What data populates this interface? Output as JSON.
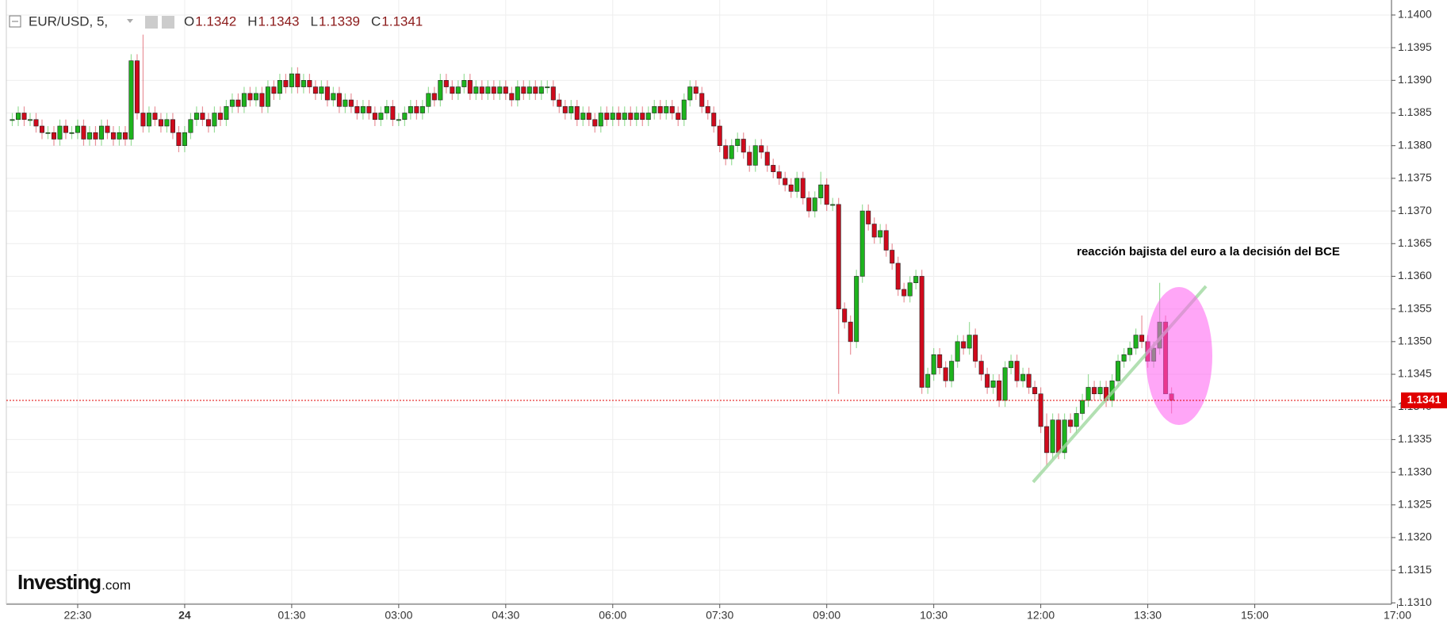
{
  "chart_data": {
    "type": "candlestick",
    "symbol": "EUR/USD, 5,",
    "ohlc_legend": [
      {
        "label": "O",
        "value": 1.1342
      },
      {
        "label": "H",
        "value": 1.1343
      },
      {
        "label": "L",
        "value": 1.1339
      },
      {
        "label": "C",
        "value": 1.1341
      }
    ],
    "annotation": "reacción bajista del euro  a la decisión del BCE",
    "logo": {
      "brand": "Investing",
      "suffix": ".com"
    },
    "last_price": {
      "value": 1.1341,
      "label": "1.1341",
      "color": "#e00000"
    },
    "up_color": "#1db31d",
    "down_color": "#cf0a1c",
    "grid": true,
    "xlim": [
      -150,
      1015
    ],
    "xticks": [
      {
        "value": -90,
        "label": "22:30"
      },
      {
        "value": 0,
        "label": "24"
      },
      {
        "value": 90,
        "label": "01:30"
      },
      {
        "value": 180,
        "label": "03:00"
      },
      {
        "value": 270,
        "label": "04:30"
      },
      {
        "value": 360,
        "label": "06:00"
      },
      {
        "value": 450,
        "label": "07:30"
      },
      {
        "value": 540,
        "label": "09:00"
      },
      {
        "value": 630,
        "label": "10:30"
      },
      {
        "value": 720,
        "label": "12:00"
      },
      {
        "value": 810,
        "label": "13:30"
      },
      {
        "value": 900,
        "label": "15:00"
      },
      {
        "value": 1020,
        "label": "17:00"
      }
    ],
    "ylim": [
      1.13098,
      1.14023
    ],
    "yticks": [
      {
        "value": 1.131,
        "label": "1.1310"
      },
      1.1315,
      {
        "value": 1.132,
        "label": "1.1320"
      },
      1.1325,
      {
        "value": 1.133,
        "label": "1.1330"
      },
      1.1335,
      {
        "value": 1.134,
        "label": "1.1340"
      },
      1.1345,
      {
        "value": 1.135,
        "label": "1.1350"
      },
      1.1355,
      {
        "value": 1.136,
        "label": "1.1360"
      },
      1.1365,
      {
        "value": 1.137,
        "label": "1.1370"
      },
      1.1375,
      {
        "value": 1.138,
        "label": "1.1380"
      },
      1.1385,
      {
        "value": 1.139,
        "label": "1.1390"
      },
      1.1395,
      {
        "value": 1.14,
        "label": "1.1400"
      }
    ],
    "x": [
      -145,
      -140,
      -135,
      -130,
      -125,
      -120,
      -115,
      -110,
      -105,
      -100,
      -95,
      -90,
      -85,
      -80,
      -75,
      -70,
      -65,
      -60,
      -55,
      -50,
      -45,
      -40,
      -35,
      -30,
      -25,
      -20,
      -15,
      -10,
      -5,
      0,
      5,
      10,
      15,
      20,
      25,
      30,
      35,
      40,
      45,
      50,
      55,
      60,
      65,
      70,
      75,
      80,
      85,
      90,
      95,
      100,
      105,
      110,
      115,
      120,
      125,
      130,
      135,
      140,
      145,
      150,
      155,
      160,
      165,
      170,
      175,
      180,
      185,
      190,
      195,
      200,
      205,
      210,
      215,
      220,
      225,
      230,
      235,
      240,
      245,
      250,
      255,
      260,
      265,
      270,
      275,
      280,
      285,
      290,
      295,
      300,
      305,
      310,
      315,
      320,
      325,
      330,
      335,
      340,
      345,
      350,
      355,
      360,
      365,
      370,
      375,
      380,
      385,
      390,
      395,
      400,
      405,
      410,
      415,
      420,
      425,
      430,
      435,
      440,
      445,
      450,
      455,
      460,
      465,
      470,
      475,
      480,
      485,
      490,
      495,
      500,
      505,
      510,
      515,
      520,
      525,
      530,
      535,
      540,
      545,
      550,
      555,
      560,
      565,
      570,
      575,
      580,
      585,
      590,
      595,
      600,
      605,
      610,
      615,
      620,
      625,
      630,
      635,
      640,
      645,
      650,
      655,
      660,
      665,
      670,
      675,
      680,
      685,
      690,
      695,
      700,
      705,
      710,
      715,
      720,
      725,
      730,
      735,
      740,
      745,
      750,
      755,
      760,
      765,
      770,
      775,
      780,
      785,
      790,
      795,
      800,
      805,
      810,
      815,
      820,
      825,
      830
    ],
    "open": [
      1.1384,
      1.1384,
      1.1385,
      1.1384,
      1.1384,
      1.1383,
      1.1382,
      1.1382,
      1.1381,
      1.1383,
      1.1382,
      1.1382,
      1.1383,
      1.1381,
      1.1382,
      1.1381,
      1.1383,
      1.1382,
      1.1381,
      1.1382,
      1.1381,
      1.1393,
      1.1385,
      1.1383,
      1.1385,
      1.1384,
      1.1383,
      1.1384,
      1.1382,
      1.138,
      1.1382,
      1.1384,
      1.1385,
      1.1384,
      1.1383,
      1.1385,
      1.1384,
      1.1386,
      1.1387,
      1.1386,
      1.1388,
      1.1387,
      1.1388,
      1.1386,
      1.1389,
      1.1388,
      1.139,
      1.1389,
      1.1391,
      1.1389,
      1.139,
      1.1389,
      1.1388,
      1.1389,
      1.1387,
      1.1388,
      1.1386,
      1.1387,
      1.1386,
      1.1385,
      1.1386,
      1.1385,
      1.1384,
      1.1385,
      1.1386,
      1.1384,
      1.1384,
      1.1385,
      1.1386,
      1.1385,
      1.1386,
      1.1388,
      1.1387,
      1.139,
      1.1389,
      1.1388,
      1.1389,
      1.139,
      1.1388,
      1.1389,
      1.1388,
      1.1389,
      1.1388,
      1.1389,
      1.1388,
      1.1387,
      1.1389,
      1.1388,
      1.1389,
      1.1388,
      1.1389,
      1.1389,
      1.1387,
      1.1386,
      1.1385,
      1.1386,
      1.1384,
      1.1385,
      1.1384,
      1.1383,
      1.1385,
      1.1384,
      1.1385,
      1.1384,
      1.1385,
      1.1384,
      1.1385,
      1.1384,
      1.1385,
      1.1386,
      1.1385,
      1.1386,
      1.1385,
      1.1384,
      1.1387,
      1.1389,
      1.1388,
      1.1386,
      1.1385,
      1.1383,
      1.138,
      1.1378,
      1.138,
      1.1381,
      1.1379,
      1.1377,
      1.138,
      1.1379,
      1.1377,
      1.1376,
      1.1375,
      1.1374,
      1.1373,
      1.1375,
      1.1372,
      1.137,
      1.1372,
      1.1374,
      1.1371,
      1.1371,
      1.1355,
      1.1353,
      1.135,
      1.136,
      1.137,
      1.1368,
      1.1366,
      1.1367,
      1.1364,
      1.1362,
      1.1358,
      1.1357,
      1.1359,
      1.136,
      1.1343,
      1.1345,
      1.1348,
      1.1346,
      1.1344,
      1.1347,
      1.135,
      1.1349,
      1.1351,
      1.1347,
      1.1345,
      1.1343,
      1.1344,
      1.1341,
      1.1346,
      1.1347,
      1.1344,
      1.1345,
      1.1343,
      1.1342,
      1.1337,
      1.1333,
      1.1338,
      1.1333,
      1.1338,
      1.1337,
      1.1339,
      1.1341,
      1.1343,
      1.1342,
      1.1343,
      1.1341,
      1.1344,
      1.1347,
      1.1348,
      1.1349,
      1.1351,
      1.135,
      1.1347,
      1.1349,
      1.1353,
      1.1342
    ],
    "high": [
      1.1385,
      1.1386,
      1.1386,
      1.1385,
      1.1385,
      1.1384,
      1.1383,
      1.1383,
      1.1384,
      1.1384,
      1.1383,
      1.1384,
      1.1384,
      1.1383,
      1.1383,
      1.1384,
      1.1384,
      1.1383,
      1.1383,
      1.1383,
      1.1394,
      1.1394,
      1.1397,
      1.1386,
      1.1386,
      1.1385,
      1.1385,
      1.1385,
      1.1383,
      1.1383,
      1.1385,
      1.1386,
      1.1386,
      1.1385,
      1.1386,
      1.1386,
      1.1387,
      1.1388,
      1.1388,
      1.1389,
      1.1389,
      1.1389,
      1.1389,
      1.139,
      1.139,
      1.1391,
      1.1391,
      1.1392,
      1.1392,
      1.1391,
      1.1391,
      1.139,
      1.139,
      1.139,
      1.1389,
      1.1389,
      1.1388,
      1.1388,
      1.1387,
      1.1387,
      1.1387,
      1.1386,
      1.1386,
      1.1387,
      1.1387,
      1.1385,
      1.1386,
      1.1387,
      1.1387,
      1.1387,
      1.1389,
      1.1389,
      1.1391,
      1.1391,
      1.139,
      1.139,
      1.1391,
      1.1391,
      1.139,
      1.139,
      1.139,
      1.139,
      1.139,
      1.139,
      1.1389,
      1.139,
      1.139,
      1.139,
      1.139,
      1.139,
      1.139,
      1.139,
      1.1388,
      1.1387,
      1.1387,
      1.1387,
      1.1386,
      1.1386,
      1.1385,
      1.1386,
      1.1386,
      1.1386,
      1.1386,
      1.1386,
      1.1386,
      1.1386,
      1.1386,
      1.1386,
      1.1387,
      1.1387,
      1.1387,
      1.1387,
      1.1386,
      1.1388,
      1.139,
      1.139,
      1.1389,
      1.1387,
      1.1386,
      1.1384,
      1.1381,
      1.1381,
      1.1382,
      1.1382,
      1.138,
      1.1381,
      1.1381,
      1.138,
      1.1378,
      1.1377,
      1.1376,
      1.1375,
      1.1376,
      1.1376,
      1.1373,
      1.1373,
      1.1376,
      1.1375,
      1.1372,
      1.1372,
      1.1356,
      1.1354,
      1.1361,
      1.1371,
      1.1371,
      1.1369,
      1.1368,
      1.1368,
      1.1365,
      1.1363,
      1.1359,
      1.136,
      1.1361,
      1.1361,
      1.1346,
      1.1349,
      1.1349,
      1.1347,
      1.1348,
      1.1351,
      1.1351,
      1.1353,
      1.1352,
      1.1348,
      1.1346,
      1.1345,
      1.1345,
      1.1347,
      1.1348,
      1.1348,
      1.1346,
      1.1346,
      1.1344,
      1.1343,
      1.1339,
      1.1339,
      1.1339,
      1.1339,
      1.1339,
      1.134,
      1.1342,
      1.1345,
      1.1344,
      1.1344,
      1.1344,
      1.1345,
      1.1348,
      1.1349,
      1.135,
      1.1352,
      1.1354,
      1.1351,
      1.135,
      1.1359,
      1.1354,
      1.1343
    ],
    "low": [
      1.1383,
      1.1383,
      1.1383,
      1.1383,
      1.1382,
      1.1381,
      1.1381,
      1.138,
      1.138,
      1.1381,
      1.1381,
      1.1381,
      1.138,
      1.138,
      1.138,
      1.138,
      1.1381,
      1.138,
      1.138,
      1.138,
      1.138,
      1.1384,
      1.1382,
      1.1382,
      1.1383,
      1.1382,
      1.1382,
      1.1381,
      1.1379,
      1.1379,
      1.1381,
      1.1383,
      1.1383,
      1.1382,
      1.1382,
      1.1383,
      1.1383,
      1.1385,
      1.1385,
      1.1385,
      1.1386,
      1.1386,
      1.1385,
      1.1385,
      1.1387,
      1.1387,
      1.1388,
      1.1388,
      1.1388,
      1.1388,
      1.1388,
      1.1387,
      1.1387,
      1.1386,
      1.1386,
      1.1385,
      1.1385,
      1.1385,
      1.1384,
      1.1384,
      1.1384,
      1.1383,
      1.1383,
      1.1384,
      1.1383,
      1.1383,
      1.1383,
      1.1384,
      1.1384,
      1.1384,
      1.1385,
      1.1386,
      1.1386,
      1.1388,
      1.1387,
      1.1387,
      1.1388,
      1.1387,
      1.1387,
      1.1387,
      1.1387,
      1.1387,
      1.1387,
      1.1387,
      1.1386,
      1.1386,
      1.1387,
      1.1387,
      1.1387,
      1.1387,
      1.1388,
      1.1386,
      1.1385,
      1.1384,
      1.1384,
      1.1383,
      1.1383,
      1.1383,
      1.1382,
      1.1382,
      1.1383,
      1.1383,
      1.1383,
      1.1383,
      1.1383,
      1.1383,
      1.1383,
      1.1383,
      1.1384,
      1.1384,
      1.1384,
      1.1384,
      1.1383,
      1.1383,
      1.1386,
      1.1387,
      1.1385,
      1.1384,
      1.1382,
      1.1379,
      1.1377,
      1.1377,
      1.1379,
      1.1378,
      1.1376,
      1.1376,
      1.1378,
      1.1376,
      1.1375,
      1.1374,
      1.1373,
      1.1372,
      1.1372,
      1.1371,
      1.1369,
      1.1369,
      1.1371,
      1.137,
      1.137,
      1.1342,
      1.1352,
      1.1348,
      1.1349,
      1.1359,
      1.1367,
      1.1365,
      1.1365,
      1.1363,
      1.1361,
      1.1357,
      1.1356,
      1.1356,
      1.1358,
      1.1342,
      1.1342,
      1.1344,
      1.1345,
      1.1343,
      1.1343,
      1.1346,
      1.1348,
      1.1348,
      1.1346,
      1.1344,
      1.1342,
      1.1342,
      1.134,
      1.134,
      1.1345,
      1.1343,
      1.1343,
      1.1342,
      1.1341,
      1.1336,
      1.1331,
      1.1332,
      1.1332,
      1.1332,
      1.1336,
      1.1336,
      1.1338,
      1.134,
      1.1341,
      1.1341,
      1.134,
      1.134,
      1.1343,
      1.1346,
      1.1347,
      1.1348,
      1.1349,
      1.1346,
      1.1346,
      1.1348,
      1.1342,
      1.1339
    ],
    "close": [
      1.1384,
      1.1385,
      1.1384,
      1.1384,
      1.1383,
      1.1382,
      1.1382,
      1.1381,
      1.1383,
      1.1382,
      1.1382,
      1.1383,
      1.1381,
      1.1382,
      1.1381,
      1.1383,
      1.1382,
      1.1381,
      1.1382,
      1.1381,
      1.1393,
      1.1385,
      1.1383,
      1.1385,
      1.1384,
      1.1383,
      1.1384,
      1.1382,
      1.138,
      1.1382,
      1.1384,
      1.1385,
      1.1384,
      1.1383,
      1.1385,
      1.1384,
      1.1386,
      1.1387,
      1.1386,
      1.1388,
      1.1387,
      1.1388,
      1.1386,
      1.1389,
      1.1388,
      1.139,
      1.1389,
      1.1391,
      1.1389,
      1.139,
      1.1389,
      1.1388,
      1.1389,
      1.1387,
      1.1388,
      1.1386,
      1.1387,
      1.1386,
      1.1385,
      1.1386,
      1.1385,
      1.1384,
      1.1385,
      1.1386,
      1.1384,
      1.1384,
      1.1385,
      1.1386,
      1.1385,
      1.1386,
      1.1388,
      1.1387,
      1.139,
      1.1389,
      1.1388,
      1.1389,
      1.139,
      1.1388,
      1.1389,
      1.1388,
      1.1389,
      1.1388,
      1.1389,
      1.1388,
      1.1387,
      1.1389,
      1.1388,
      1.1389,
      1.1388,
      1.1389,
      1.1389,
      1.1387,
      1.1386,
      1.1385,
      1.1386,
      1.1384,
      1.1385,
      1.1384,
      1.1383,
      1.1385,
      1.1384,
      1.1385,
      1.1384,
      1.1385,
      1.1384,
      1.1385,
      1.1384,
      1.1385,
      1.1386,
      1.1385,
      1.1386,
      1.1385,
      1.1384,
      1.1387,
      1.1389,
      1.1388,
      1.1386,
      1.1385,
      1.1383,
      1.138,
      1.1378,
      1.138,
      1.1381,
      1.1379,
      1.1377,
      1.138,
      1.1379,
      1.1377,
      1.1376,
      1.1375,
      1.1374,
      1.1373,
      1.1375,
      1.1372,
      1.137,
      1.1372,
      1.1374,
      1.1371,
      1.1371,
      1.1355,
      1.1353,
      1.135,
      1.136,
      1.137,
      1.1368,
      1.1366,
      1.1367,
      1.1364,
      1.1362,
      1.1358,
      1.1357,
      1.1359,
      1.136,
      1.1343,
      1.1345,
      1.1348,
      1.1346,
      1.1344,
      1.1347,
      1.135,
      1.1349,
      1.1351,
      1.1347,
      1.1345,
      1.1343,
      1.1344,
      1.1341,
      1.1346,
      1.1347,
      1.1344,
      1.1345,
      1.1343,
      1.1342,
      1.1337,
      1.1333,
      1.1338,
      1.1333,
      1.1338,
      1.1337,
      1.1339,
      1.1341,
      1.1343,
      1.1342,
      1.1343,
      1.1341,
      1.1344,
      1.1347,
      1.1348,
      1.1349,
      1.1351,
      1.135,
      1.1347,
      1.1349,
      1.1353,
      1.1342,
      1.1341
    ]
  }
}
